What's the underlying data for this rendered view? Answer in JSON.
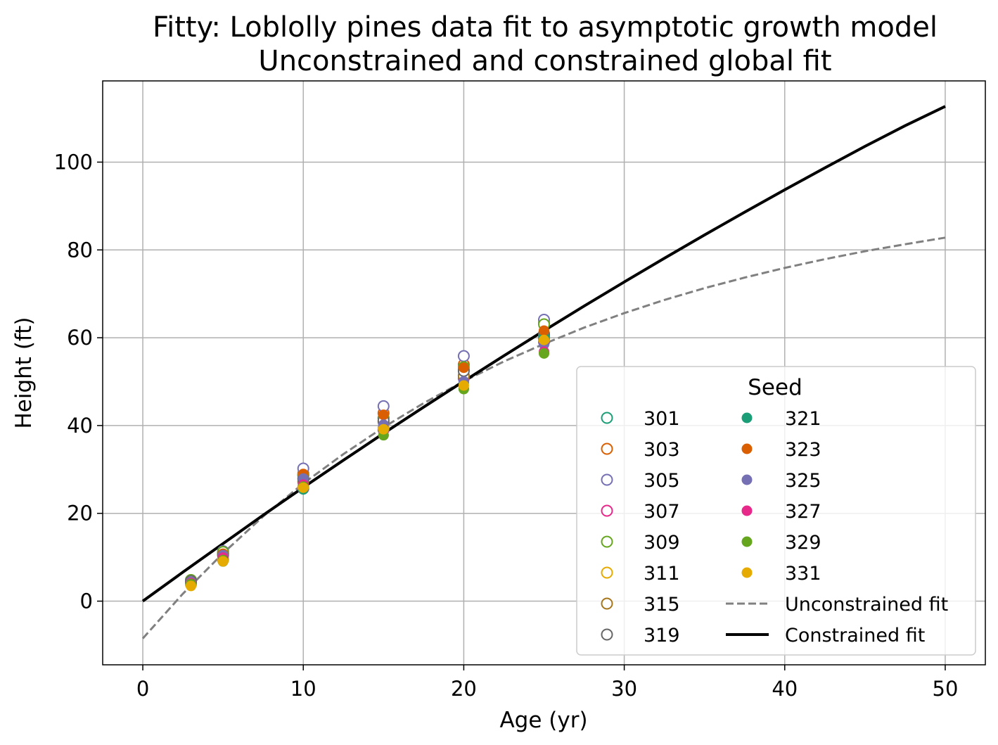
{
  "chart_data": {
    "type": "scatter",
    "title": "Fitty: Loblolly pines data fit to asymptotic growth model",
    "subtitle": "Unconstrained and constrained global fit",
    "xlabel": "Age (yr)",
    "ylabel": "Height (ft)",
    "xlim": [
      -2.5,
      52.5
    ],
    "ylim": [
      -14.5,
      118.5
    ],
    "xticks": [
      0,
      10,
      20,
      30,
      40,
      50
    ],
    "yticks": [
      0,
      20,
      40,
      60,
      80,
      100
    ],
    "grid": true,
    "legend": {
      "title": "Seed",
      "placement": "lower-right",
      "columns": 2
    },
    "series": [
      {
        "name": "301",
        "marker": "open",
        "color": "#1b9e77",
        "x": [
          3,
          5,
          10,
          15,
          20,
          25
        ],
        "y": [
          4.51,
          10.89,
          28.72,
          41.74,
          52.7,
          60.92
        ]
      },
      {
        "name": "303",
        "marker": "open",
        "color": "#d95f02",
        "x": [
          3,
          5,
          10,
          15,
          20,
          25
        ],
        "y": [
          4.55,
          10.92,
          29.07,
          42.83,
          53.88,
          63.39
        ]
      },
      {
        "name": "305",
        "marker": "open",
        "color": "#7570b3",
        "x": [
          3,
          5,
          10,
          15,
          20,
          25
        ],
        "y": [
          4.79,
          11.37,
          30.21,
          44.4,
          55.82,
          64.1
        ]
      },
      {
        "name": "307",
        "marker": "open",
        "color": "#e7298a",
        "x": [
          3,
          5,
          10,
          15,
          20,
          25
        ],
        "y": [
          3.91,
          9.48,
          25.66,
          39.07,
          50.78,
          59.07
        ]
      },
      {
        "name": "309",
        "marker": "open",
        "color": "#66a61e",
        "x": [
          3,
          5,
          10,
          15,
          20,
          25
        ],
        "y": [
          4.81,
          11.2,
          28.66,
          41.66,
          53.31,
          63.05
        ]
      },
      {
        "name": "311",
        "marker": "open",
        "color": "#e6ab02",
        "x": [
          3,
          5,
          10,
          15,
          20,
          25
        ],
        "y": [
          3.88,
          9.4,
          25.99,
          39.55,
          51.46,
          59.64
        ]
      },
      {
        "name": "315",
        "marker": "open",
        "color": "#a6761d",
        "x": [
          3,
          5,
          10,
          15,
          20,
          25
        ],
        "y": [
          4.32,
          10.43,
          27.16,
          40.85,
          51.33,
          60.07
        ]
      },
      {
        "name": "319",
        "marker": "open",
        "color": "#666666",
        "x": [
          3,
          5,
          10,
          15,
          20,
          25
        ],
        "y": [
          4.57,
          10.57,
          27.9,
          41.13,
          52.43,
          60.69
        ]
      },
      {
        "name": "321",
        "marker": "filled",
        "color": "#1b9e77",
        "x": [
          3,
          5,
          10,
          15,
          20,
          25
        ],
        "y": [
          3.77,
          9.03,
          25.45,
          38.98,
          49.76,
          60.28
        ]
      },
      {
        "name": "323",
        "marker": "filled",
        "color": "#d95f02",
        "x": [
          3,
          5,
          10,
          15,
          20,
          25
        ],
        "y": [
          4.33,
          10.79,
          28.97,
          42.44,
          53.17,
          61.62
        ]
      },
      {
        "name": "325",
        "marker": "filled",
        "color": "#7570b3",
        "x": [
          3,
          5,
          10,
          15,
          20,
          25
        ],
        "y": [
          4.38,
          10.48,
          27.93,
          40.2,
          50.06,
          58.49
        ]
      },
      {
        "name": "327",
        "marker": "filled",
        "color": "#e7298a",
        "x": [
          3,
          5,
          10,
          15,
          20,
          25
        ],
        "y": [
          4.12,
          9.92,
          26.54,
          37.82,
          48.43,
          56.81
        ]
      },
      {
        "name": "329",
        "marker": "filled",
        "color": "#66a61e",
        "x": [
          3,
          5,
          10,
          15,
          20,
          25
        ],
        "y": [
          3.93,
          9.34,
          26.08,
          37.79,
          48.31,
          56.43
        ]
      },
      {
        "name": "331",
        "marker": "filled",
        "color": "#e6ab02",
        "x": [
          3,
          5,
          10,
          15,
          20,
          25
        ],
        "y": [
          3.46,
          9.05,
          25.85,
          39.15,
          49.12,
          59.49
        ]
      }
    ],
    "fits": [
      {
        "name": "Unconstrained fit",
        "style": "dashed",
        "color": "#808080",
        "x": [
          0,
          2.5,
          5,
          7.5,
          10,
          12.5,
          15,
          17.5,
          20,
          22.5,
          25,
          27.5,
          30,
          32.5,
          35,
          37.5,
          40,
          42.5,
          45,
          47.5,
          50
        ],
        "y": [
          -8.5,
          1.7,
          10.9,
          19.3,
          26.8,
          33.5,
          39.6,
          45.1,
          50.1,
          54.6,
          58.6,
          62.3,
          65.6,
          68.6,
          71.3,
          73.7,
          75.9,
          77.9,
          79.7,
          81.3,
          82.8
        ]
      },
      {
        "name": "Constrained fit",
        "style": "solid",
        "color": "#000000",
        "x": [
          0,
          2.5,
          5,
          7.5,
          10,
          12.5,
          15,
          17.5,
          20,
          22.5,
          25,
          27.5,
          30,
          32.5,
          35,
          37.5,
          40,
          42.5,
          45,
          47.5,
          50
        ],
        "y": [
          0,
          6.6,
          13.1,
          19.6,
          25.9,
          32.1,
          38.2,
          44.2,
          50.1,
          55.9,
          61.6,
          67.2,
          72.7,
          78.1,
          83.4,
          88.6,
          93.7,
          98.7,
          103.6,
          108.3,
          112.7
        ]
      }
    ]
  }
}
